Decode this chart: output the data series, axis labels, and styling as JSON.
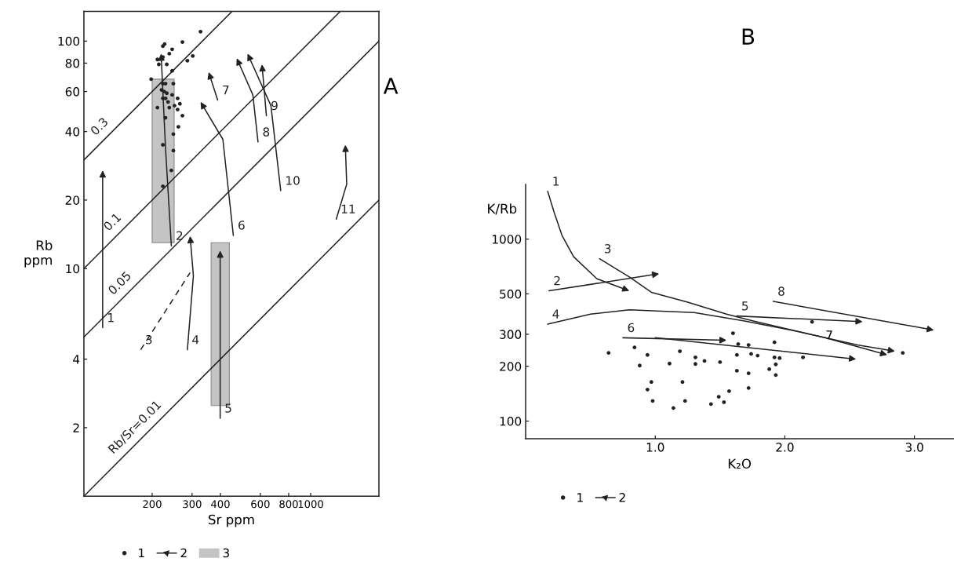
{
  "chart_data": [
    {
      "type": "scatter",
      "title": "A",
      "xlabel": "Sr ppm",
      "ylabel": "Rb\nppm",
      "log": "xy",
      "xlim": [
        100,
        2000
      ],
      "ylim": [
        1,
        135
      ],
      "xticks": [
        200,
        300,
        400,
        600,
        800,
        1000
      ],
      "yticks": [
        2,
        4,
        10,
        20,
        40,
        60,
        80,
        100
      ],
      "legend": "bottom",
      "annotations": [
        "1",
        "2",
        "3"
      ],
      "series": [
        {
          "type": "area",
          "color": "#c4c4c4",
          "x": [
            200,
            250,
            250,
            200
          ],
          "values": [
            13,
            13,
            68,
            68
          ]
        },
        {
          "type": "area",
          "color": "#c4c4c4",
          "x": [
            364,
            438,
            438,
            364
          ],
          "values": [
            2.5,
            2.5,
            13,
            13
          ]
        },
        {
          "color": "#222222",
          "marker": "circle",
          "x": [
            327,
            272,
            227,
            223,
            245,
            238,
            223,
            211,
            214,
            232,
            286,
            302,
            245,
            198,
            223,
            229,
            248,
            220,
            226,
            232,
            245,
            223,
            229,
            259,
            235,
            251,
            265,
            211,
            238,
            259,
            272,
            229,
            261,
            248,
            223,
            248,
            243,
            223
          ],
          "values": [
            110,
            99,
            97,
            95,
            92,
            88,
            85,
            83,
            79,
            79,
            82,
            86,
            74,
            68,
            65,
            65,
            65,
            61,
            60,
            59,
            58,
            56,
            56,
            56,
            54,
            52,
            53,
            51,
            51,
            50,
            47,
            46,
            42,
            39,
            35,
            33,
            27,
            23
          ]
        },
        {
          "type": "line",
          "name": "0.3",
          "color": "#222222",
          "line_style": "solid",
          "x": [
            100,
            450
          ],
          "values": [
            30,
            135
          ]
        },
        {
          "type": "line",
          "name": "0.1",
          "color": "#222222",
          "line_style": "solid",
          "x": [
            100,
            1350
          ],
          "values": [
            10,
            135
          ]
        },
        {
          "type": "line",
          "name": "0.05",
          "color": "#222222",
          "line_style": "solid",
          "x": [
            100,
            2000
          ],
          "values": [
            5,
            100
          ]
        },
        {
          "type": "line",
          "name": "Rb/Sr=0.01",
          "color": "#222222",
          "line_style": "solid",
          "x": [
            100,
            2000
          ],
          "values": [
            1,
            20
          ]
        },
        {
          "type": "line",
          "name": "1",
          "color": "#222222",
          "x": [
            121,
            121
          ],
          "values": [
            5.5,
            27
          ]
        },
        {
          "type": "line",
          "name": "2",
          "color": "#222222",
          "x": [
            243,
            229,
            219
          ],
          "values": [
            12.6,
            34,
            88
          ]
        },
        {
          "type": "line",
          "name": "3",
          "color": "#222222",
          "line_style": "dashed",
          "x": [
            178,
            294
          ],
          "values": [
            4.4,
            9.6
          ]
        },
        {
          "type": "line",
          "name": "4",
          "color": "#222222",
          "x": [
            286,
            304,
            294
          ],
          "values": [
            4.4,
            9.3,
            13.9
          ]
        },
        {
          "type": "line",
          "name": "5",
          "color": "#222222",
          "x": [
            399,
            399
          ],
          "values": [
            2.2,
            12
          ]
        },
        {
          "type": "line",
          "name": "6",
          "color": "#222222",
          "x": [
            456,
            410,
            327
          ],
          "values": [
            14,
            37,
            54
          ]
        },
        {
          "type": "line",
          "name": "7",
          "color": "#222222",
          "x": [
            389,
            355
          ],
          "values": [
            55,
            73
          ]
        },
        {
          "type": "line",
          "name": "8",
          "color": "#222222",
          "x": [
            586,
            556,
            472
          ],
          "values": [
            36,
            58,
            84
          ]
        },
        {
          "type": "line",
          "name": "9",
          "color": "#222222",
          "x": [
            638,
            610
          ],
          "values": [
            47,
            79
          ]
        },
        {
          "type": "line",
          "name": "10",
          "color": "#222222",
          "x": [
            738,
            668,
            527
          ],
          "values": [
            22,
            52,
            88
          ]
        },
        {
          "type": "line",
          "name": "11",
          "color": "#222222",
          "x": [
            1297,
            1442,
            1422
          ],
          "values": [
            16.5,
            23.5,
            35
          ]
        }
      ]
    },
    {
      "type": "scatter",
      "title": "B",
      "xlabel": "K₂O",
      "ylabel": "K/Rb",
      "log": "y",
      "xlim": [
        0,
        3.3
      ],
      "ylim": [
        80,
        2000
      ],
      "xticks": [
        {
          "value": 1,
          "label": "1.0"
        },
        {
          "value": 2,
          "label": "2.0"
        },
        {
          "value": 3,
          "label": "3.0"
        }
      ],
      "yticks": [
        100,
        200,
        300,
        500,
        1000
      ],
      "legend": "bottom",
      "annotations": [
        "1",
        "2",
        {
          "text": "7",
          "x": 2.28,
          "y": 231
        }
      ],
      "series": [
        {
          "color": "#222222",
          "marker": "circle",
          "x": [
            0.64,
            0.84,
            0.94,
            0.88,
            0.97,
            0.94,
            0.98,
            1.11,
            1.14,
            1.19,
            1.21,
            1.23,
            1.31,
            1.31,
            1.38,
            1.43,
            1.49,
            1.5,
            1.53,
            1.57,
            1.6,
            1.63,
            1.64,
            1.63,
            1.72,
            1.72,
            1.72,
            1.74,
            1.79,
            1.88,
            1.92,
            1.92,
            1.96,
            1.93,
            1.93,
            2.14,
            2.21,
            2.91
          ],
          "values": [
            237,
            254,
            231,
            202,
            164,
            149,
            129,
            207,
            118,
            242,
            164,
            129,
            224,
            206,
            214,
            124,
            136,
            211,
            127,
            146,
            304,
            231,
            265,
            189,
            262,
            183,
            152,
            234,
            229,
            193,
            271,
            224,
            222,
            179,
            205,
            224,
            351,
            237
          ]
        },
        {
          "type": "line",
          "name": "1",
          "color": "#222222",
          "x": [
            0.17,
            0.22,
            0.28,
            0.37,
            0.55,
            0.8
          ],
          "values": [
            1830,
            1400,
            1050,
            800,
            605,
            520
          ]
        },
        {
          "type": "line",
          "name": "2",
          "color": "#222222",
          "x": [
            0.18,
            1.03
          ],
          "values": [
            520,
            645
          ]
        },
        {
          "type": "line",
          "name": "3",
          "color": "#222222",
          "x": [
            0.57,
            0.8,
            0.97,
            1.25,
            1.55,
            1.75,
            2.31,
            2.79
          ],
          "values": [
            780,
            620,
            510,
            450,
            387,
            356,
            287,
            231
          ]
        },
        {
          "type": "line",
          "name": "4",
          "color": "#222222",
          "x": [
            0.17,
            0.5,
            0.8,
            1.3,
            1.68,
            2.06,
            2.56,
            2.85
          ],
          "values": [
            341,
            387,
            409,
            395,
            356,
            315,
            262,
            242
          ]
        },
        {
          "type": "line",
          "name": "5",
          "color": "#222222",
          "x": [
            1.63,
            2.6
          ],
          "values": [
            378,
            352
          ]
        },
        {
          "type": "line",
          "name": "6",
          "color": "#222222",
          "x": [
            0.75,
            1.55
          ],
          "values": [
            287,
            278
          ]
        },
        {
          "type": "line",
          "color": "#222222",
          "x": [
            1.0,
            2.55
          ],
          "values": [
            287,
            219
          ]
        },
        {
          "type": "line",
          "name": "8",
          "color": "#222222",
          "x": [
            1.91,
            3.15
          ],
          "values": [
            455,
            316
          ]
        }
      ]
    }
  ]
}
